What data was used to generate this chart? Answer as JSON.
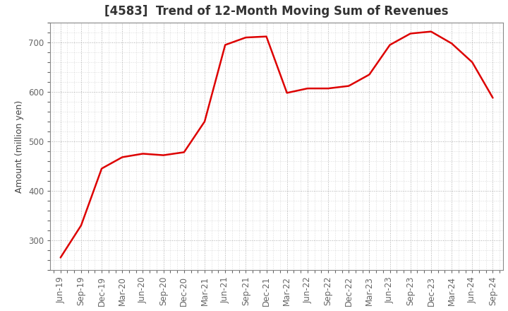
{
  "title": "[4583]  Trend of 12-Month Moving Sum of Revenues",
  "ylabel": "Amount (million yen)",
  "line_color": "#dd0000",
  "background_color": "#ffffff",
  "plot_bg_color": "#ffffff",
  "grid_color": "#999999",
  "title_color": "#333333",
  "xlabels": [
    "Jun-19",
    "Sep-19",
    "Dec-19",
    "Mar-20",
    "Jun-20",
    "Sep-20",
    "Dec-20",
    "Mar-21",
    "Jun-21",
    "Sep-21",
    "Dec-21",
    "Mar-22",
    "Jun-22",
    "Sep-22",
    "Dec-22",
    "Mar-23",
    "Jun-23",
    "Sep-23",
    "Dec-23",
    "Mar-24",
    "Jun-24",
    "Sep-24"
  ],
  "values": [
    265,
    330,
    445,
    468,
    475,
    472,
    478,
    540,
    695,
    710,
    712,
    598,
    607,
    607,
    612,
    635,
    695,
    718,
    722,
    698,
    660,
    588
  ],
  "ylim": [
    240,
    740
  ],
  "yticks": [
    300,
    400,
    500,
    600,
    700
  ],
  "title_fontsize": 12,
  "axis_fontsize": 9,
  "tick_fontsize": 8.5
}
